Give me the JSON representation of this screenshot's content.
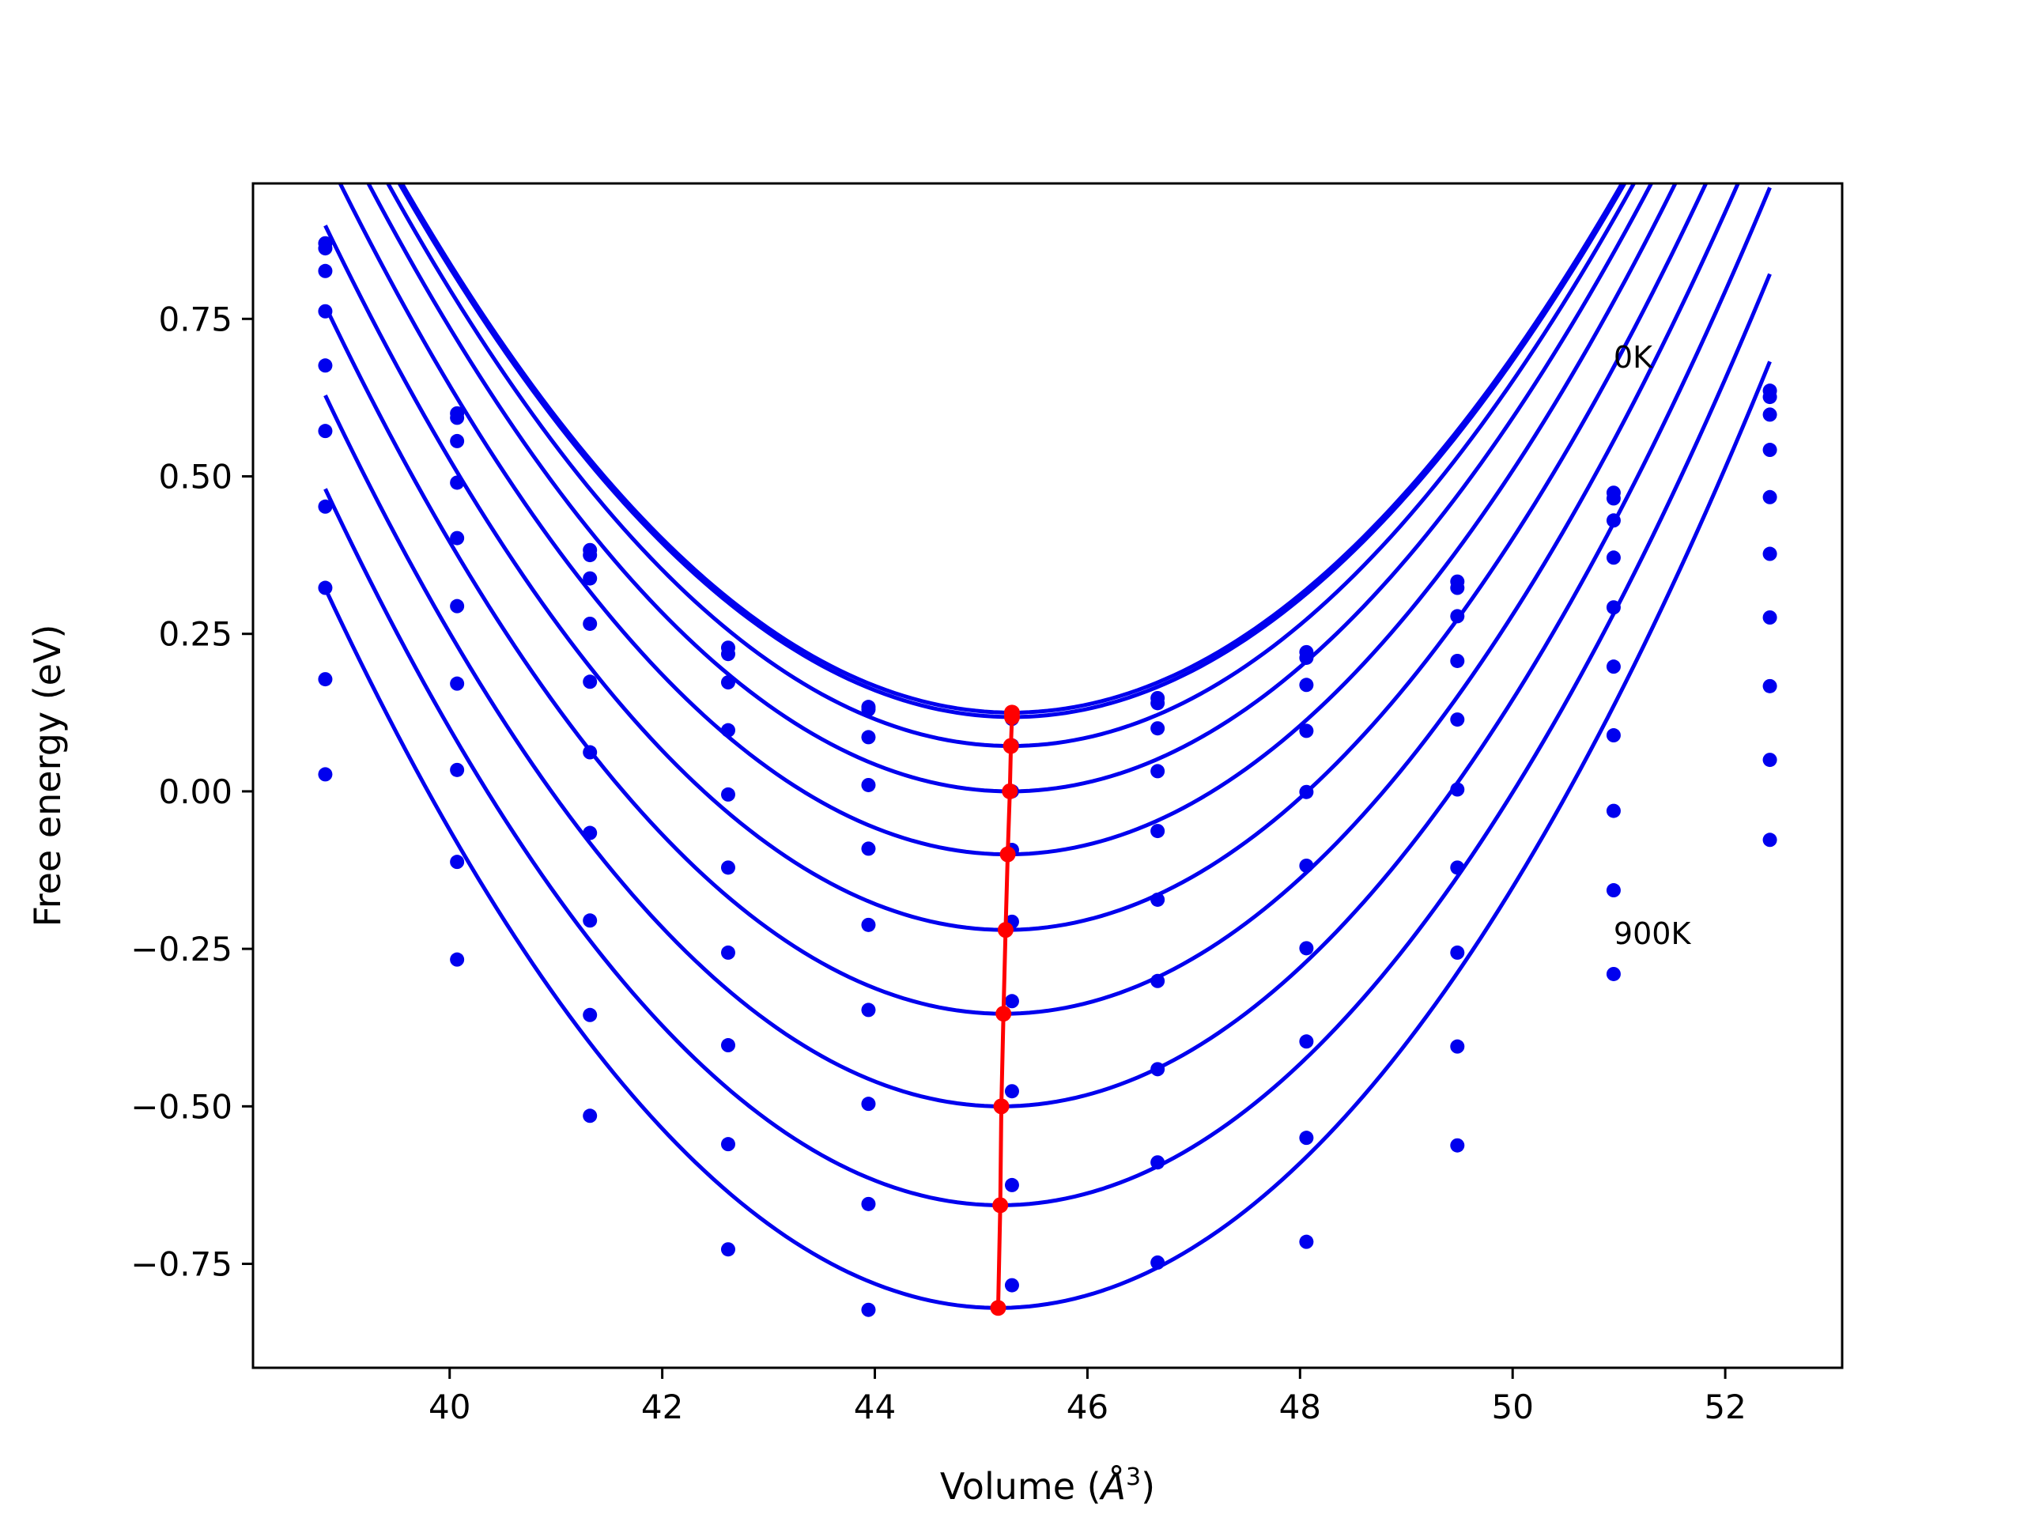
{
  "chart_data": {
    "type": "line",
    "title": "",
    "xlabel": "Volume (",
    "xlabel_symbol": "Å",
    "xlabel_sup": "3",
    "xlabel_close": ")",
    "ylabel": "Free energy (eV)",
    "xlim": [
      38.15,
      53.1
    ],
    "ylim": [
      -0.915,
      0.965
    ],
    "xticks": [
      40,
      42,
      44,
      46,
      48,
      50,
      52
    ],
    "xtick_labels": [
      "40",
      "42",
      "44",
      "46",
      "48",
      "50",
      "52"
    ],
    "yticks": [
      0.75,
      0.5,
      0.25,
      0.0,
      -0.25,
      -0.5,
      -0.75
    ],
    "ytick_labels": [
      "0.75",
      "0.50",
      "0.25",
      "0.00",
      "−0.25",
      "−0.50",
      "−0.75"
    ],
    "grid": false,
    "legend": "none",
    "annotations": [
      {
        "text": "0K",
        "x": 50.95,
        "y": 0.69
      },
      {
        "text": "900K",
        "x": 50.95,
        "y": -0.225
      }
    ],
    "colors": {
      "fit": "#0000ee",
      "points": "#0000ee",
      "minimum": "#ff0000"
    },
    "point_volumes": [
      38.83,
      40.07,
      41.32,
      42.62,
      43.94,
      45.29,
      46.66,
      48.06,
      49.48,
      50.95,
      52.42
    ],
    "series": [
      {
        "V0": 45.29,
        "E0": 0.125,
        "B": 0.0255,
        "points": [
          0.87,
          0.6,
          0.383,
          0.228,
          0.134,
          0.125,
          0.148,
          0.221,
          0.333,
          0.474,
          0.636
        ]
      },
      {
        "V0": 45.29,
        "E0": 0.118,
        "B": 0.0255,
        "points": [
          0.862,
          0.593,
          0.375,
          0.218,
          0.13,
          0.115,
          0.14,
          0.212,
          0.323,
          0.465,
          0.626
        ]
      },
      {
        "V0": 45.28,
        "E0": 0.072,
        "B": 0.026,
        "points": [
          0.826,
          0.556,
          0.338,
          0.173,
          0.086,
          0.073,
          0.1,
          0.169,
          0.278,
          0.43,
          0.598
        ]
      },
      {
        "V0": 45.27,
        "E0": 0.0,
        "B": 0.0265,
        "points": [
          0.762,
          0.49,
          0.266,
          0.097,
          0.01,
          0.0,
          0.032,
          0.096,
          0.207,
          0.371,
          0.542
        ]
      },
      {
        "V0": 45.25,
        "E0": -0.1,
        "B": 0.027,
        "points": [
          0.676,
          0.402,
          0.174,
          -0.005,
          -0.091,
          -0.093,
          -0.063,
          -0.001,
          0.114,
          0.292,
          0.467
        ]
      },
      {
        "V0": 45.23,
        "E0": -0.22,
        "B": 0.0273,
        "points": [
          0.572,
          0.294,
          0.062,
          -0.121,
          -0.212,
          -0.207,
          -0.172,
          -0.118,
          0.003,
          0.198,
          0.377
        ]
      },
      {
        "V0": 45.21,
        "E0": -0.353,
        "B": 0.0276,
        "points": [
          0.452,
          0.171,
          -0.066,
          -0.256,
          -0.347,
          -0.333,
          -0.301,
          -0.249,
          -0.121,
          0.089,
          0.276
        ]
      },
      {
        "V0": 45.19,
        "E0": -0.5,
        "B": 0.0279,
        "points": [
          0.323,
          0.034,
          -0.205,
          -0.403,
          -0.496,
          -0.476,
          -0.441,
          -0.397,
          -0.256,
          -0.031,
          0.167
        ]
      },
      {
        "V0": 45.18,
        "E0": -0.657,
        "B": 0.0282,
        "points": [
          0.178,
          -0.112,
          -0.355,
          -0.56,
          -0.655,
          -0.625,
          -0.589,
          -0.55,
          -0.405,
          -0.157,
          0.05
        ]
      },
      {
        "V0": 45.16,
        "E0": -0.82,
        "B": 0.0285,
        "points": [
          0.027,
          -0.267,
          -0.515,
          -0.727,
          -0.823,
          -0.784,
          -0.748,
          -0.715,
          -0.562,
          -0.29,
          -0.077
        ]
      }
    ]
  }
}
